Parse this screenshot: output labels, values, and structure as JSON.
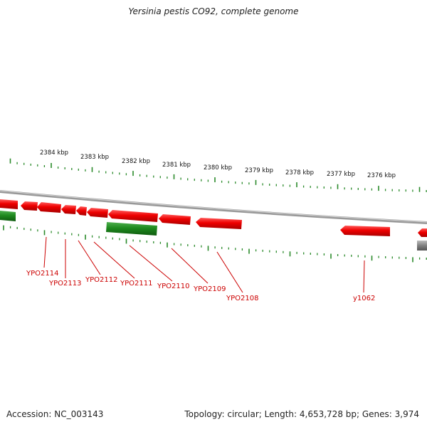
{
  "header": {
    "title": "Yersinia pestis CO92, complete genome"
  },
  "footer": {
    "accession": "Accession: NC_003143",
    "summary": "Topology: circular; Length: 4,653,728 bp; Genes: 3,974"
  },
  "scale": {
    "ticks": [
      "2384 kbp",
      "2383 kbp",
      "2382 kbp",
      "2381 kbp",
      "2380 kbp",
      "2379 kbp",
      "2378 kbp",
      "2377 kbp",
      "2376 kbp"
    ]
  },
  "genes": {
    "labels": [
      "YPO2114",
      "YPO2113",
      "YPO2112",
      "YPO2111",
      "YPO2110",
      "YPO2109",
      "YPO2108",
      "y1062"
    ]
  },
  "colors": {
    "forward_feature": "#ee0000",
    "reverse_feature": "#1e8a1e",
    "other_feature": "#808080",
    "tick": "#2a8a2a",
    "label": "#cc0000",
    "backbone": "#999999"
  }
}
